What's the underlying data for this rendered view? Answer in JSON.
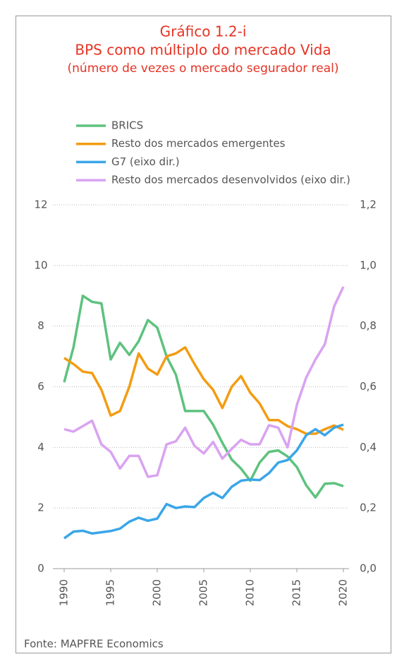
{
  "chart_data": {
    "type": "line",
    "title": [
      "Gráfico 1.2-i",
      "BPS como múltiplo do mercado Vida",
      "(número de vezes o mercado segurador real)"
    ],
    "source": "Fonte: MAPFRE Economics",
    "x": [
      1990,
      1991,
      1992,
      1993,
      1994,
      1995,
      1996,
      1997,
      1998,
      1999,
      2000,
      2001,
      2002,
      2003,
      2004,
      2005,
      2006,
      2007,
      2008,
      2009,
      2010,
      2011,
      2012,
      2013,
      2014,
      2015,
      2016,
      2017,
      2018,
      2019,
      2020
    ],
    "xlim": [
      1990,
      2020
    ],
    "xticks": [
      1990,
      1995,
      2000,
      2005,
      2010,
      2015,
      2020
    ],
    "ylim": [
      0,
      12
    ],
    "yticks": [
      0,
      2,
      4,
      6,
      8,
      10,
      12
    ],
    "y2lim": [
      0,
      1.2
    ],
    "y2ticks": [
      {
        "value": 0,
        "label": "0,0"
      },
      {
        "value": 0.2,
        "label": "0,2"
      },
      {
        "value": 0.4,
        "label": "0,4"
      },
      {
        "value": 0.6,
        "label": "0,6"
      },
      {
        "value": 0.8,
        "label": "0,8"
      },
      {
        "value": 1.0,
        "label": "1,0"
      },
      {
        "value": 1.2,
        "label": "1,2"
      }
    ],
    "grid": true,
    "series": [
      {
        "name": "BRICS",
        "color": "#5ec27e",
        "values": [
          6.15,
          7.3,
          9.0,
          8.8,
          8.75,
          6.9,
          7.45,
          7.05,
          7.5,
          8.2,
          7.95,
          7.0,
          6.4,
          5.2,
          5.2,
          5.2,
          4.75,
          4.15,
          3.6,
          3.3,
          2.9,
          3.5,
          3.85,
          3.9,
          3.7,
          3.35,
          2.75,
          2.35,
          2.8,
          2.82,
          2.72
        ]
      },
      {
        "name": "Resto dos mercados emergentes",
        "color": "#f39c12",
        "values": [
          6.95,
          6.75,
          6.5,
          6.45,
          5.9,
          5.05,
          5.2,
          6.0,
          7.1,
          6.6,
          6.4,
          7.0,
          7.1,
          7.3,
          6.75,
          6.25,
          5.9,
          5.3,
          6.0,
          6.35,
          5.8,
          5.45,
          4.9,
          4.9,
          4.7,
          4.6,
          4.45,
          4.45,
          4.6,
          4.72,
          4.58
        ]
      },
      {
        "name": "G7 (eixo dir.)",
        "color": "#3aa6e8",
        "axis": "y2",
        "values": [
          0.1,
          0.122,
          0.125,
          0.116,
          0.12,
          0.124,
          0.132,
          0.155,
          0.168,
          0.158,
          0.165,
          0.213,
          0.2,
          0.205,
          0.203,
          0.233,
          0.25,
          0.233,
          0.27,
          0.29,
          0.294,
          0.292,
          0.315,
          0.35,
          0.358,
          0.39,
          0.44,
          0.46,
          0.44,
          0.465,
          0.475
        ]
      },
      {
        "name": "Resto dos mercados desenvolvidos (eixo dir.)",
        "color": "#d9a3f0",
        "axis": "y2",
        "values": [
          0.46,
          0.452,
          0.47,
          0.488,
          0.41,
          0.385,
          0.33,
          0.372,
          0.372,
          0.303,
          0.308,
          0.41,
          0.42,
          0.465,
          0.405,
          0.38,
          0.418,
          0.363,
          0.395,
          0.425,
          0.41,
          0.41,
          0.473,
          0.465,
          0.4,
          0.54,
          0.63,
          0.69,
          0.74,
          0.865,
          0.93
        ]
      }
    ]
  }
}
